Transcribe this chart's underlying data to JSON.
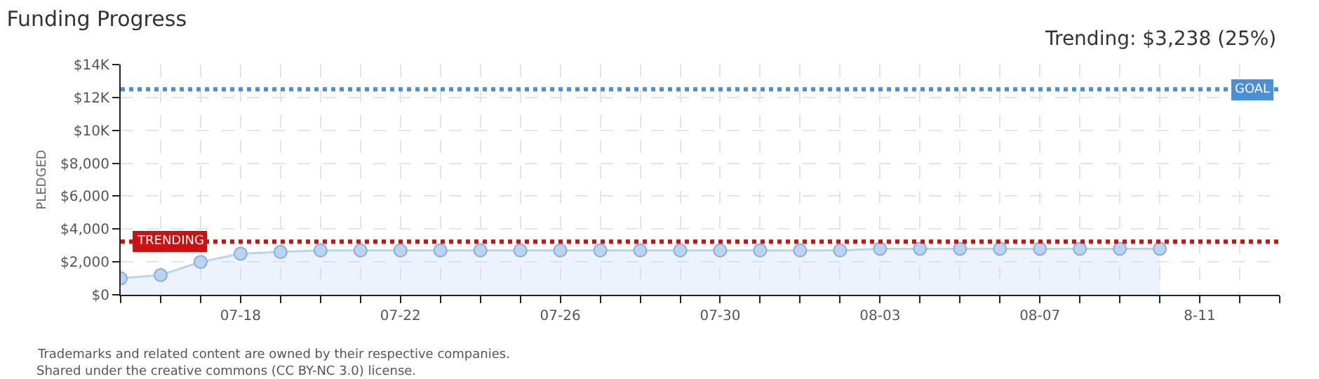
{
  "chart_data": {
    "type": "area",
    "title": "Funding Progress",
    "ylabel": "PLEDGED",
    "x": [
      "--07-15",
      "--07-16",
      "--07-17",
      "--07-18",
      "--07-19",
      "--07-20",
      "--07-21",
      "--07-22",
      "--07-23",
      "--07-24",
      "--07-25",
      "--07-26",
      "--07-27",
      "--07-28",
      "--07-29",
      "--07-30",
      "--07-31",
      "--08-01",
      "--08-02",
      "--08-03",
      "--08-04",
      "--08-05",
      "--08-06",
      "--08-07",
      "--08-08",
      "--08-09",
      "--08-10"
    ],
    "series": [
      {
        "color": "#b8d4f0",
        "values": [
          1000,
          1200,
          2000,
          2500,
          2600,
          2700,
          2700,
          2700,
          2700,
          2700,
          2700,
          2700,
          2700,
          2700,
          2700,
          2700,
          2700,
          2700,
          2700,
          2800,
          2800,
          2800,
          2800,
          2800,
          2800,
          2800,
          2800
        ]
      }
    ],
    "xlim": [
      "--07-15",
      "--08-13"
    ],
    "xticks": [
      {
        "value": "--07-15",
        "label": null
      },
      {
        "value": "--07-16",
        "label": null
      },
      {
        "value": "--07-17",
        "label": null
      },
      {
        "value": "--07-18",
        "label": "07-18"
      },
      {
        "value": "--07-19",
        "label": null
      },
      {
        "value": "--07-20",
        "label": null
      },
      {
        "value": "--07-21",
        "label": null
      },
      {
        "value": "--07-22",
        "label": "07-22"
      },
      {
        "value": "--07-23",
        "label": null
      },
      {
        "value": "--07-24",
        "label": null
      },
      {
        "value": "--07-25",
        "label": null
      },
      {
        "value": "--07-26",
        "label": "07-26"
      },
      {
        "value": "--07-27",
        "label": null
      },
      {
        "value": "--07-28",
        "label": null
      },
      {
        "value": "--07-29",
        "label": null
      },
      {
        "value": "--07-30",
        "label": "07-30"
      },
      {
        "value": "--07-31",
        "label": null
      },
      {
        "value": "--08-01",
        "label": null
      },
      {
        "value": "--08-02",
        "label": null
      },
      {
        "value": "--08-03",
        "label": "08-03"
      },
      {
        "value": "--08-04",
        "label": null
      },
      {
        "value": "--08-05",
        "label": null
      },
      {
        "value": "--08-06",
        "label": null
      },
      {
        "value": "--08-07",
        "label": "08-07"
      },
      {
        "value": "--08-08",
        "label": null
      },
      {
        "value": "--08-09",
        "label": null
      },
      {
        "value": "--08-10",
        "label": null
      },
      {
        "value": "--08-11",
        "label": "8-11"
      },
      {
        "value": "--08-12",
        "label": null
      },
      {
        "value": "--08-13",
        "label": null
      }
    ],
    "ylim": [
      0,
      14000
    ],
    "yticks": [
      {
        "value": 0,
        "label": "$0"
      },
      {
        "value": 2000,
        "label": "$2,000"
      },
      {
        "value": 4000,
        "label": "$4,000"
      },
      {
        "value": 6000,
        "label": "$6,000"
      },
      {
        "value": 8000,
        "label": "$8,000"
      },
      {
        "value": 10000,
        "label": "$10K"
      },
      {
        "value": 12000,
        "label": "$12K"
      },
      {
        "value": 14000,
        "label": "$14K"
      }
    ],
    "ref_lines": [
      {
        "axis": "y",
        "value": 12500,
        "label": "GOAL",
        "color": "#4a8fd8",
        "line_style": "dotted"
      },
      {
        "axis": "y",
        "value": 3238,
        "label": "TRENDING",
        "color": "#cc1111",
        "line_style": "dotted"
      }
    ],
    "annotations": [
      "Trending: $3,238 (25%)",
      "Trademarks and related content are owned by their respective companies.",
      "Shared under the creative commons (CC BY-NC 3.0) license."
    ],
    "grid": true,
    "marker": "circle"
  }
}
